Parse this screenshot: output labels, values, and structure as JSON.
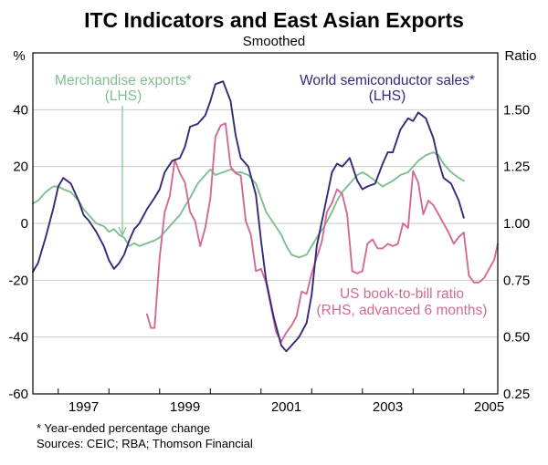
{
  "chart_data": {
    "type": "line",
    "title": "ITC Indicators and East Asian Exports",
    "subtitle": "Smoothed",
    "left_axis": {
      "unit": "%",
      "ylim": [
        -60,
        60
      ],
      "ticks": [
        "40",
        "20",
        "0",
        "-20",
        "-40",
        "-60"
      ],
      "tick_values": [
        40,
        20,
        0,
        -20,
        -40,
        -60
      ]
    },
    "right_axis": {
      "unit": "Ratio",
      "ylim": [
        0.25,
        1.75
      ],
      "ticks": [
        "1.50",
        "1.25",
        "1.00",
        "0.75",
        "0.50",
        "0.25"
      ],
      "tick_values": [
        1.5,
        1.25,
        1.0,
        0.75,
        0.5,
        0.25
      ]
    },
    "x_axis": {
      "xlim": [
        1996.5,
        2005.67
      ],
      "tick_labels": [
        "1997",
        "1999",
        "2001",
        "2003",
        "2005"
      ],
      "tick_label_values": [
        1997,
        1999,
        2001,
        2003,
        2005
      ],
      "minor_ticks": [
        1997,
        1998,
        1999,
        2000,
        2001,
        2002,
        2003,
        2004,
        2005
      ]
    },
    "grid": true,
    "series": [
      {
        "name": "Merchandise exports",
        "label_lines": [
          "Merchandise exports*",
          "(LHS)"
        ],
        "axis": "left",
        "color": "#7fbf8e",
        "x": [
          1996.5,
          1996.6,
          1996.75,
          1996.9,
          1997.0,
          1997.1,
          1997.25,
          1997.4,
          1997.5,
          1997.6,
          1997.75,
          1997.9,
          1998.0,
          1998.1,
          1998.2,
          1998.3,
          1998.4,
          1998.5,
          1998.6,
          1998.75,
          1998.9,
          1999.0,
          1999.1,
          1999.25,
          1999.4,
          1999.5,
          1999.6,
          1999.75,
          1999.9,
          2000.0,
          2000.1,
          2000.25,
          2000.4,
          2000.5,
          2000.6,
          2000.75,
          2000.9,
          2001.0,
          2001.1,
          2001.25,
          2001.4,
          2001.5,
          2001.6,
          2001.75,
          2001.9,
          2002.0,
          2002.1,
          2002.25,
          2002.4,
          2002.5,
          2002.6,
          2002.75,
          2002.9,
          2003.0,
          2003.1,
          2003.25,
          2003.4,
          2003.5,
          2003.6,
          2003.75,
          2003.9,
          2004.0,
          2004.1,
          2004.25,
          2004.4,
          2004.5,
          2004.6,
          2004.75,
          2004.9,
          2005.0
        ],
        "y": [
          7,
          8,
          11,
          13,
          13,
          12,
          11,
          8,
          5,
          3,
          0,
          -1,
          -3,
          -2,
          -4,
          -5,
          -8,
          -7,
          -8,
          -7,
          -6,
          -5,
          -3,
          0,
          3,
          6,
          9,
          14,
          17,
          19,
          17,
          18,
          19,
          18,
          18,
          17,
          14,
          9,
          4,
          0,
          -4,
          -8,
          -11,
          -12,
          -11,
          -8,
          -5,
          -1,
          4,
          8,
          11,
          14,
          17,
          18,
          17,
          15,
          13,
          14,
          15,
          17,
          18,
          20,
          22,
          24,
          25,
          24,
          21,
          18,
          16,
          15
        ]
      },
      {
        "name": "World semiconductor sales",
        "label_lines": [
          "World semiconductor sales*",
          "(LHS)"
        ],
        "axis": "left",
        "color": "#36287a",
        "x": [
          1996.5,
          1996.6,
          1996.75,
          1996.9,
          1997.0,
          1997.1,
          1997.25,
          1997.4,
          1997.5,
          1997.6,
          1997.75,
          1997.9,
          1998.0,
          1998.1,
          1998.2,
          1998.3,
          1998.4,
          1998.5,
          1998.6,
          1998.75,
          1998.9,
          1999.0,
          1999.1,
          1999.25,
          1999.4,
          1999.5,
          1999.6,
          1999.75,
          1999.9,
          2000.0,
          2000.1,
          2000.25,
          2000.4,
          2000.5,
          2000.6,
          2000.75,
          2000.9,
          2001.0,
          2001.1,
          2001.25,
          2001.4,
          2001.5,
          2001.6,
          2001.75,
          2001.9,
          2002.0,
          2002.1,
          2002.25,
          2002.4,
          2002.5,
          2002.6,
          2002.75,
          2002.9,
          2003.0,
          2003.1,
          2003.25,
          2003.4,
          2003.5,
          2003.6,
          2003.75,
          2003.9,
          2004.0,
          2004.1,
          2004.25,
          2004.4,
          2004.5,
          2004.6,
          2004.75,
          2004.9,
          2005.0
        ],
        "y": [
          -17,
          -14,
          -5,
          5,
          13,
          16,
          14,
          8,
          3,
          1,
          -3,
          -8,
          -13,
          -16,
          -14,
          -11,
          -6,
          -2,
          0,
          5,
          9,
          12,
          18,
          22,
          23,
          27,
          34,
          35,
          38,
          43,
          49,
          50,
          43,
          31,
          23,
          20,
          10,
          -6,
          -20,
          -33,
          -43,
          -45,
          -43,
          -40,
          -35,
          -25,
          -8,
          5,
          18,
          21,
          20,
          23,
          15,
          12,
          13,
          14,
          21,
          25,
          25,
          33,
          37,
          36,
          39,
          37,
          30,
          22,
          16,
          14,
          8,
          2
        ]
      },
      {
        "name": "US book-to-bill ratio",
        "label_lines": [
          "US book-to-bill ratio",
          "(RHS, advanced 6 months)"
        ],
        "axis": "right",
        "color": "#d26a96",
        "x": [
          1998.75,
          1998.83,
          1998.9,
          1999.0,
          1999.1,
          1999.2,
          1999.3,
          1999.4,
          1999.5,
          1999.6,
          1999.7,
          1999.8,
          1999.9,
          2000.0,
          2000.1,
          2000.2,
          2000.3,
          2000.4,
          2000.5,
          2000.6,
          2000.7,
          2000.8,
          2000.9,
          2001.0,
          2001.1,
          2001.2,
          2001.3,
          2001.4,
          2001.5,
          2001.6,
          2001.7,
          2001.8,
          2001.9,
          2002.0,
          2002.1,
          2002.2,
          2002.3,
          2002.4,
          2002.5,
          2002.6,
          2002.7,
          2002.8,
          2002.9,
          2003.0,
          2003.1,
          2003.2,
          2003.3,
          2003.4,
          2003.5,
          2003.6,
          2003.7,
          2003.8,
          2003.9,
          2004.0,
          2004.1,
          2004.2,
          2004.3,
          2004.4,
          2004.5,
          2004.6,
          2004.7,
          2004.8,
          2004.9,
          2005.0,
          2005.1,
          2005.2,
          2005.3,
          2005.4,
          2005.5,
          2005.6,
          2005.67
        ],
        "y": [
          0.6,
          0.54,
          0.54,
          0.85,
          1.05,
          1.12,
          1.28,
          1.22,
          1.18,
          1.05,
          1.01,
          0.9,
          0.98,
          1.11,
          1.38,
          1.43,
          1.44,
          1.25,
          1.22,
          1.21,
          1.01,
          0.95,
          0.79,
          0.8,
          0.74,
          0.63,
          0.52,
          0.48,
          0.52,
          0.55,
          0.59,
          0.7,
          0.69,
          0.78,
          0.85,
          0.92,
          1.05,
          1.09,
          1.15,
          1.13,
          1.04,
          0.79,
          0.78,
          0.79,
          0.91,
          0.93,
          0.89,
          0.89,
          0.91,
          0.9,
          0.91,
          1.0,
          0.98,
          1.23,
          1.18,
          1.04,
          1.1,
          1.08,
          1.04,
          1.0,
          0.96,
          0.91,
          0.94,
          0.96,
          0.77,
          0.74,
          0.74,
          0.76,
          0.8,
          0.84,
          0.91
        ]
      }
    ],
    "footnotes": [
      "*   Year-ended percentage change",
      "Sources: CEIC; RBA; Thomson Financial"
    ]
  }
}
